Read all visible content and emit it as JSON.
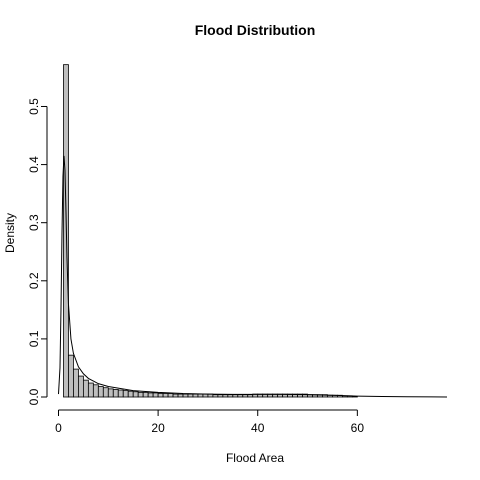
{
  "chart_data": {
    "type": "bar",
    "title": "Flood Distribution",
    "xlabel": "Flood Area",
    "ylabel": "Density",
    "xlim": [
      -0.5,
      78
    ],
    "ylim": [
      0,
      0.58
    ],
    "xticks": [
      0,
      20,
      40,
      60
    ],
    "yticks": [
      0.0,
      0.1,
      0.2,
      0.3,
      0.4,
      0.5
    ],
    "bin_width": 1,
    "histogram": {
      "bin_starts": [
        1,
        2,
        3,
        4,
        5,
        6,
        7,
        8,
        9,
        10,
        11,
        12,
        13,
        14,
        15,
        16,
        17,
        18,
        19,
        20,
        21,
        22,
        23,
        24,
        25,
        26,
        27,
        28,
        29,
        30,
        31,
        32,
        33,
        34,
        35,
        36,
        37,
        38,
        39,
        40,
        41,
        42,
        43,
        44,
        45,
        46,
        47,
        48,
        49,
        50,
        51,
        52,
        53,
        54,
        55,
        56,
        57,
        58,
        59
      ],
      "densities": [
        0.572,
        0.072,
        0.048,
        0.036,
        0.029,
        0.024,
        0.021,
        0.018,
        0.016,
        0.014,
        0.013,
        0.012,
        0.011,
        0.01,
        0.009,
        0.008,
        0.008,
        0.007,
        0.007,
        0.006,
        0.006,
        0.006,
        0.005,
        0.005,
        0.005,
        0.005,
        0.005,
        0.005,
        0.005,
        0.005,
        0.004,
        0.004,
        0.004,
        0.004,
        0.004,
        0.004,
        0.004,
        0.004,
        0.005,
        0.005,
        0.005,
        0.005,
        0.005,
        0.005,
        0.005,
        0.005,
        0.005,
        0.005,
        0.005,
        0.004,
        0.004,
        0.004,
        0.004,
        0.003,
        0.003,
        0.003,
        0.002,
        0.002,
        0.001
      ]
    },
    "density_curve": {
      "x": [
        0,
        0.3,
        0.5,
        0.7,
        0.9,
        1.1,
        1.3,
        1.5,
        1.7,
        2.0,
        2.5,
        3,
        4,
        5,
        6,
        8,
        10,
        15,
        20,
        25,
        30,
        35,
        40,
        45,
        50,
        55,
        60,
        65,
        70,
        75,
        78
      ],
      "y": [
        0.005,
        0.05,
        0.15,
        0.28,
        0.38,
        0.415,
        0.39,
        0.32,
        0.24,
        0.16,
        0.1,
        0.075,
        0.052,
        0.04,
        0.032,
        0.023,
        0.018,
        0.011,
        0.008,
        0.006,
        0.005,
        0.0045,
        0.0045,
        0.0045,
        0.004,
        0.003,
        0.0015,
        0.0008,
        0.0004,
        0.0002,
        0.0001
      ]
    }
  }
}
